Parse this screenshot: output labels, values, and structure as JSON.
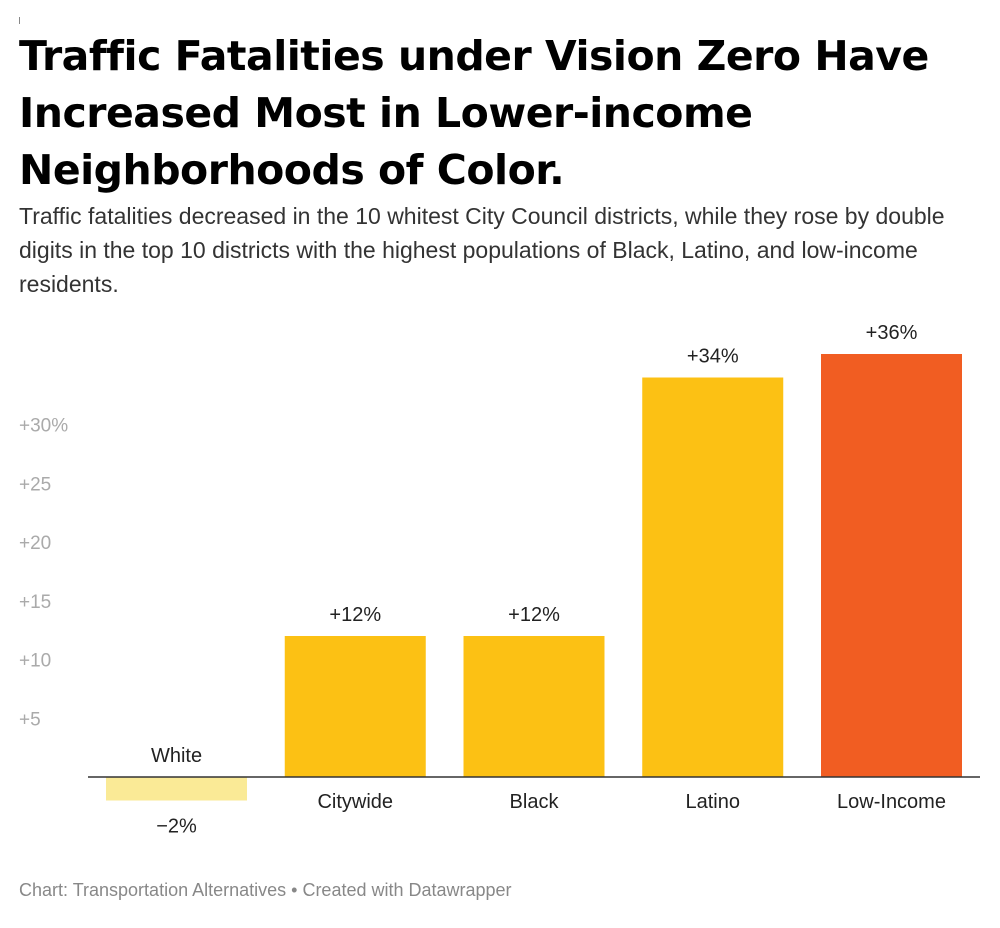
{
  "chart_data": {
    "type": "bar",
    "title": "Traffic Fatalities under Vision Zero Have Increased Most in Lower-income Neighborhoods of Color.",
    "subtitle": "Traffic fatalities decreased in the 10 whitest City Council districts, while they rose by double digits in the top 10 districts with the highest populations of Black, Latino, and low-income residents.",
    "categories": [
      "White",
      "Citywide",
      "Black",
      "Latino",
      "Low-Income"
    ],
    "values": [
      -2,
      12,
      12,
      34,
      36
    ],
    "value_labels": [
      "−2%",
      "+12%",
      "+12%",
      "+34%",
      "+36%"
    ],
    "colors": [
      "#faea96",
      "#fcc114",
      "#fcc114",
      "#fcc114",
      "#f15d22"
    ],
    "y_ticks": [
      5,
      10,
      15,
      20,
      25,
      30
    ],
    "y_tick_labels": [
      "+5",
      "+10",
      "+15",
      "+20",
      "+25",
      "+30%"
    ],
    "ylim": [
      -2,
      36
    ],
    "xlabel": "",
    "ylabel": "",
    "grid": false,
    "footer": "Chart: Transportation Alternatives • Created with Datawrapper"
  }
}
